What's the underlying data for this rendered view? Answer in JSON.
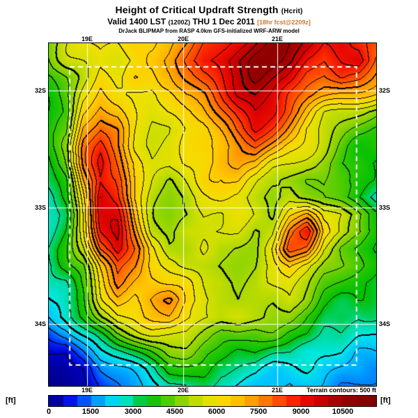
{
  "header": {
    "title": "Height of Critical Updraft Strength",
    "title_suffix": "(Hcrit)",
    "valid_prefix": "Valid 1400 LST",
    "valid_z": "(1200Z)",
    "valid_date": "THU 1 Dec 2011",
    "fcst_note": "[18hr fcst@2209z]",
    "fcst_note_color": "#c87a2e",
    "model_line": "DrJack BLIPMAP from RASP 4.0km GFS-initialized WRF-ARW model"
  },
  "map": {
    "lon_labels": [
      "19E",
      "20E",
      "21E"
    ],
    "lat_labels": [
      "32S",
      "33S",
      "34S"
    ],
    "terrain_note": "Terrain contours: 500 ft"
  },
  "colorbar": {
    "unit": "[ft]",
    "ticks": [
      "0",
      "1500",
      "3000",
      "4500",
      "6000",
      "7500",
      "9000",
      "10500"
    ]
  },
  "chart_data": {
    "type": "heatmap",
    "title": "Height of Critical Updraft Strength (Hcrit)",
    "units": "ft",
    "x_tick_labels": [
      "19E",
      "20E",
      "21E"
    ],
    "y_tick_labels": [
      "32S",
      "33S",
      "34S"
    ],
    "scale_ticks": [
      0,
      1500,
      3000,
      4500,
      6000,
      7500,
      9000,
      10500
    ],
    "scale_max": 11700,
    "contour_interval_ft": 500,
    "lon_fracs": [
      0.117,
      0.411,
      0.698
    ],
    "lat_fracs": [
      0.138,
      0.48,
      0.819
    ],
    "inner_box": [
      0.064,
      0.069,
      0.94,
      0.939
    ],
    "palette": [
      [
        0,
        "#000080"
      ],
      [
        500,
        "#0000c8"
      ],
      [
        1000,
        "#0028ff"
      ],
      [
        1500,
        "#0080ff"
      ],
      [
        2000,
        "#00c0ff"
      ],
      [
        2500,
        "#00e8e8"
      ],
      [
        3000,
        "#00d890"
      ],
      [
        3500,
        "#00c000"
      ],
      [
        4000,
        "#30c800"
      ],
      [
        4500,
        "#70d000"
      ],
      [
        5000,
        "#a8d800"
      ],
      [
        5500,
        "#d8e000"
      ],
      [
        6000,
        "#f0e000"
      ],
      [
        6500,
        "#ffd000"
      ],
      [
        7000,
        "#ffb000"
      ],
      [
        7500,
        "#ff8c00"
      ],
      [
        8000,
        "#ff6000"
      ],
      [
        8500,
        "#ff3800"
      ],
      [
        9000,
        "#f01000"
      ],
      [
        9500,
        "#d80000"
      ],
      [
        10000,
        "#b80000"
      ],
      [
        10500,
        "#980000"
      ],
      [
        11700,
        "#800000"
      ]
    ],
    "grid_note": "approximate Hcrit values (ft) on a 20x21 grid, west-to-east / north-to-south",
    "grid": [
      [
        4500,
        5000,
        5500,
        6000,
        6000,
        6500,
        6500,
        7000,
        7500,
        8500,
        9000,
        9500,
        10000,
        10500,
        10000,
        9500,
        9000,
        9500,
        9000,
        8500
      ],
      [
        4000,
        5000,
        5500,
        6000,
        5500,
        6000,
        6500,
        7000,
        8000,
        9000,
        9500,
        10000,
        10500,
        10500,
        10000,
        9000,
        8500,
        9000,
        9500,
        8000
      ],
      [
        3500,
        4500,
        5500,
        6500,
        6000,
        6500,
        6000,
        6500,
        7500,
        8500,
        9000,
        9500,
        10500,
        10000,
        9500,
        8500,
        8000,
        8500,
        8000,
        7000
      ],
      [
        3500,
        4500,
        6000,
        7000,
        6500,
        6000,
        5500,
        6000,
        7000,
        7500,
        8500,
        9500,
        10000,
        9500,
        8500,
        8000,
        7500,
        7000,
        6500,
        6000
      ],
      [
        3500,
        4000,
        6500,
        7500,
        7000,
        6000,
        5500,
        6000,
        6500,
        7000,
        8000,
        9000,
        9500,
        9000,
        8000,
        7000,
        6000,
        5500,
        5000,
        4500
      ],
      [
        3500,
        4000,
        7000,
        8000,
        7500,
        6000,
        5500,
        5500,
        6000,
        6500,
        7500,
        8500,
        9000,
        8000,
        7000,
        6000,
        5500,
        5000,
        4500,
        4000
      ],
      [
        3500,
        4500,
        7500,
        8500,
        7500,
        6000,
        5500,
        5500,
        6000,
        6500,
        7000,
        7500,
        8000,
        7000,
        6000,
        5500,
        5000,
        4500,
        4000,
        4000
      ],
      [
        3500,
        4500,
        7500,
        9000,
        8000,
        6500,
        5500,
        5500,
        6000,
        6000,
        6500,
        7000,
        7000,
        6000,
        5500,
        5000,
        4500,
        4000,
        4000,
        3500
      ],
      [
        3500,
        4000,
        7000,
        9000,
        8500,
        6500,
        5500,
        5000,
        5500,
        6000,
        6000,
        6500,
        6000,
        5500,
        5000,
        4500,
        4500,
        4000,
        3500,
        3500
      ],
      [
        3000,
        4000,
        6500,
        9500,
        8500,
        6500,
        5500,
        5000,
        5000,
        5500,
        6000,
        6000,
        5500,
        5000,
        5500,
        5000,
        4500,
        4000,
        3500,
        3000
      ],
      [
        3000,
        3500,
        6000,
        9000,
        9000,
        7000,
        5500,
        5000,
        5000,
        5500,
        5500,
        6000,
        5500,
        5000,
        6500,
        7000,
        5500,
        5500,
        5000,
        4000
      ],
      [
        3000,
        3500,
        5500,
        8500,
        9500,
        7500,
        5500,
        5000,
        5500,
        5500,
        5500,
        5500,
        5000,
        5500,
        7500,
        8500,
        6000,
        5500,
        5000,
        4000
      ],
      [
        3000,
        3500,
        5000,
        8000,
        9500,
        8000,
        6000,
        5000,
        5000,
        5500,
        5000,
        5000,
        5000,
        6000,
        8000,
        7500,
        5500,
        4500,
        4000,
        3500
      ],
      [
        2500,
        3500,
        4500,
        7000,
        8500,
        7500,
        6000,
        5500,
        5000,
        5000,
        5000,
        5000,
        5000,
        5500,
        6500,
        6000,
        5000,
        4500,
        4000,
        3500
      ],
      [
        2500,
        3000,
        4500,
        6500,
        8000,
        7000,
        6500,
        6000,
        6000,
        5500,
        5500,
        5000,
        5000,
        5500,
        6000,
        5500,
        4500,
        4000,
        3500,
        3000
      ],
      [
        2500,
        3000,
        4000,
        6000,
        7000,
        6500,
        7000,
        7500,
        6500,
        6000,
        5500,
        5000,
        5000,
        5000,
        5500,
        5000,
        4000,
        3500,
        3500,
        3000
      ],
      [
        2000,
        2500,
        3500,
        5000,
        6000,
        6000,
        6500,
        7000,
        6500,
        6000,
        5500,
        5500,
        5000,
        4500,
        4500,
        4000,
        3500,
        3500,
        3000,
        3000
      ],
      [
        1000,
        1500,
        2500,
        3500,
        4500,
        5000,
        5500,
        5500,
        5500,
        5000,
        4500,
        4500,
        4000,
        4000,
        3500,
        3500,
        3000,
        3000,
        2500,
        2500
      ],
      [
        500,
        500,
        1500,
        2500,
        3000,
        3500,
        4000,
        4500,
        4500,
        4000,
        4000,
        3500,
        3500,
        3000,
        3000,
        2500,
        2500,
        2500,
        2000,
        2000
      ],
      [
        250,
        250,
        500,
        1500,
        2000,
        2500,
        3000,
        3500,
        3500,
        3500,
        3000,
        3000,
        3000,
        2500,
        2500,
        2500,
        2000,
        2000,
        2000,
        1500
      ],
      [
        100,
        200,
        300,
        1000,
        1500,
        2000,
        2500,
        3000,
        3000,
        3000,
        2500,
        2500,
        2500,
        2500,
        2000,
        2000,
        2000,
        1500,
        1500,
        1500
      ]
    ]
  }
}
